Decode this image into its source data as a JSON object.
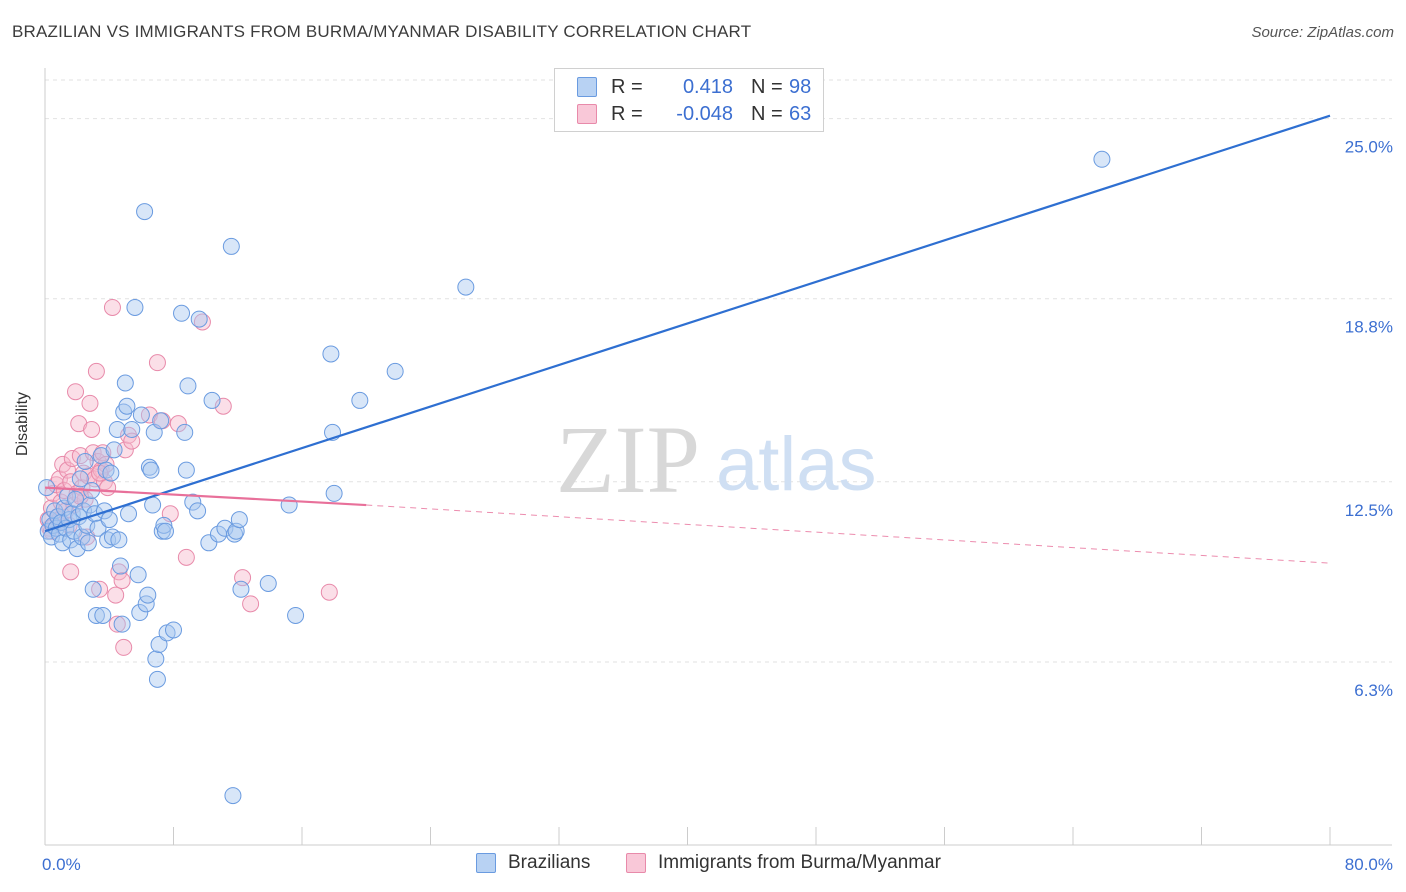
{
  "title": "BRAZILIAN VS IMMIGRANTS FROM BURMA/MYANMAR DISABILITY CORRELATION CHART",
  "source": "Source: ZipAtlas.com",
  "watermark": {
    "zip": "ZIP",
    "atlas": "atlas"
  },
  "legend": {
    "series1": {
      "r_label": "R =",
      "r_value": "0.418",
      "n_label": "N =",
      "n_value": "98"
    },
    "series2": {
      "r_label": "R =",
      "r_value": "-0.048",
      "n_label": "N =",
      "n_value": "63"
    }
  },
  "colors": {
    "blue_fill": "#a9c8f0",
    "blue_stroke": "#6a9be0",
    "blue_line": "#2e6fd1",
    "pink_fill": "#f6b8cc",
    "pink_stroke": "#e88aaa",
    "pink_line": "#e8709a",
    "axis_text": "#3c6fd1",
    "grid": "#e2e2e2"
  },
  "chart_data": {
    "type": "scatter",
    "title": "BRAZILIAN VS IMMIGRANTS FROM BURMA/MYANMAR DISABILITY CORRELATION CHART",
    "xlabel": "",
    "ylabel": "Disability",
    "xlim": [
      0,
      80
    ],
    "ylim": [
      0,
      26.5
    ],
    "x_tick_labels": [
      "0.0%",
      "80.0%"
    ],
    "y_ticks": [
      6.3,
      12.5,
      18.8,
      25.0
    ],
    "y_tick_labels": [
      "6.3%",
      "12.5%",
      "18.8%",
      "25.0%"
    ],
    "series": [
      {
        "name": "Brazilians",
        "color": "blue",
        "r": 0.418,
        "n": 98,
        "trend": {
          "x": [
            0.0,
            80.0
          ],
          "y": [
            10.8,
            25.1
          ],
          "style": "solid"
        },
        "points": [
          [
            0.2,
            10.8
          ],
          [
            0.3,
            11.2
          ],
          [
            0.4,
            10.6
          ],
          [
            0.5,
            11.0
          ],
          [
            0.6,
            11.5
          ],
          [
            0.7,
            10.9
          ],
          [
            0.8,
            11.3
          ],
          [
            0.9,
            10.7
          ],
          [
            1.0,
            11.1
          ],
          [
            1.1,
            10.4
          ],
          [
            1.2,
            11.6
          ],
          [
            1.3,
            10.9
          ],
          [
            1.4,
            12.0
          ],
          [
            1.5,
            11.2
          ],
          [
            1.6,
            10.5
          ],
          [
            1.7,
            11.4
          ],
          [
            1.8,
            10.8
          ],
          [
            1.9,
            11.9
          ],
          [
            2.0,
            10.2
          ],
          [
            2.1,
            11.3
          ],
          [
            2.2,
            12.6
          ],
          [
            2.3,
            10.6
          ],
          [
            2.4,
            11.5
          ],
          [
            2.5,
            13.2
          ],
          [
            2.6,
            11.0
          ],
          [
            2.7,
            10.4
          ],
          [
            2.8,
            11.7
          ],
          [
            2.9,
            12.2
          ],
          [
            3.0,
            8.8
          ],
          [
            3.1,
            11.4
          ],
          [
            3.2,
            7.9
          ],
          [
            3.3,
            10.9
          ],
          [
            3.5,
            13.4
          ],
          [
            3.6,
            7.9
          ],
          [
            3.7,
            11.5
          ],
          [
            3.8,
            12.9
          ],
          [
            3.9,
            10.5
          ],
          [
            4.0,
            11.2
          ],
          [
            4.1,
            12.8
          ],
          [
            4.2,
            10.6
          ],
          [
            4.3,
            13.6
          ],
          [
            4.5,
            14.3
          ],
          [
            4.6,
            10.5
          ],
          [
            4.7,
            9.6
          ],
          [
            4.8,
            7.6
          ],
          [
            4.9,
            14.9
          ],
          [
            5.0,
            15.9
          ],
          [
            5.1,
            15.1
          ],
          [
            5.2,
            11.4
          ],
          [
            5.4,
            14.3
          ],
          [
            5.6,
            18.5
          ],
          [
            5.8,
            9.3
          ],
          [
            5.9,
            8.0
          ],
          [
            6.0,
            14.8
          ],
          [
            6.2,
            21.8
          ],
          [
            6.3,
            8.3
          ],
          [
            6.4,
            8.6
          ],
          [
            6.5,
            13.0
          ],
          [
            6.6,
            12.9
          ],
          [
            6.7,
            11.7
          ],
          [
            6.8,
            14.2
          ],
          [
            6.9,
            6.4
          ],
          [
            7.0,
            5.7
          ],
          [
            7.1,
            6.9
          ],
          [
            7.2,
            14.6
          ],
          [
            7.3,
            10.8
          ],
          [
            7.4,
            11.0
          ],
          [
            7.5,
            10.8
          ],
          [
            7.6,
            7.3
          ],
          [
            8.0,
            7.4
          ],
          [
            8.5,
            18.3
          ],
          [
            8.7,
            14.2
          ],
          [
            8.8,
            12.9
          ],
          [
            8.9,
            15.8
          ],
          [
            9.2,
            11.8
          ],
          [
            9.5,
            11.5
          ],
          [
            9.6,
            18.1
          ],
          [
            10.2,
            10.4
          ],
          [
            10.4,
            15.3
          ],
          [
            10.8,
            10.7
          ],
          [
            11.2,
            10.9
          ],
          [
            11.6,
            20.6
          ],
          [
            11.8,
            10.7
          ],
          [
            11.9,
            10.8
          ],
          [
            12.1,
            11.2
          ],
          [
            11.7,
            1.7
          ],
          [
            12.2,
            8.8
          ],
          [
            13.9,
            9.0
          ],
          [
            15.2,
            11.7
          ],
          [
            15.6,
            7.9
          ],
          [
            17.8,
            16.9
          ],
          [
            17.9,
            14.2
          ],
          [
            18.0,
            12.1
          ],
          [
            19.6,
            15.3
          ],
          [
            21.8,
            16.3
          ],
          [
            26.2,
            19.2
          ],
          [
            65.8,
            23.6
          ],
          [
            0.1,
            12.3
          ]
        ]
      },
      {
        "name": "Immigrants from Burma/Myanmar",
        "color": "pink",
        "r": -0.048,
        "n": 63,
        "trend": {
          "x": [
            0.0,
            20.0
          ],
          "y": [
            12.3,
            11.7
          ],
          "style": "solid"
        },
        "trend_extension": {
          "x": [
            20.0,
            80.0
          ],
          "y": [
            11.7,
            9.7
          ],
          "style": "dashed"
        },
        "points": [
          [
            0.2,
            11.2
          ],
          [
            0.3,
            10.9
          ],
          [
            0.4,
            11.6
          ],
          [
            0.5,
            12.1
          ],
          [
            0.6,
            11.0
          ],
          [
            0.7,
            12.4
          ],
          [
            0.8,
            11.3
          ],
          [
            0.9,
            12.6
          ],
          [
            1.0,
            11.8
          ],
          [
            1.1,
            13.1
          ],
          [
            1.2,
            12.2
          ],
          [
            1.3,
            11.5
          ],
          [
            1.4,
            12.9
          ],
          [
            1.5,
            11.0
          ],
          [
            1.6,
            12.5
          ],
          [
            1.7,
            13.3
          ],
          [
            1.8,
            11.7
          ],
          [
            1.9,
            15.6
          ],
          [
            2.0,
            12.1
          ],
          [
            2.1,
            14.5
          ],
          [
            2.2,
            13.4
          ],
          [
            2.3,
            12.3
          ],
          [
            2.4,
            12.8
          ],
          [
            2.5,
            11.9
          ],
          [
            2.6,
            10.6
          ],
          [
            2.7,
            12.7
          ],
          [
            2.8,
            15.2
          ],
          [
            2.9,
            14.3
          ],
          [
            3.0,
            13.5
          ],
          [
            3.1,
            12.6
          ],
          [
            3.2,
            16.3
          ],
          [
            3.3,
            13.2
          ],
          [
            3.4,
            8.8
          ],
          [
            3.5,
            12.9
          ],
          [
            3.6,
            13.5
          ],
          [
            3.7,
            12.5
          ],
          [
            3.8,
            13.1
          ],
          [
            3.9,
            12.3
          ],
          [
            4.2,
            18.5
          ],
          [
            4.4,
            8.6
          ],
          [
            4.5,
            7.6
          ],
          [
            4.6,
            9.4
          ],
          [
            4.8,
            9.1
          ],
          [
            4.9,
            6.8
          ],
          [
            5.0,
            13.6
          ],
          [
            5.2,
            14.1
          ],
          [
            5.4,
            13.9
          ],
          [
            6.5,
            14.8
          ],
          [
            7.0,
            16.6
          ],
          [
            7.3,
            14.6
          ],
          [
            7.8,
            11.4
          ],
          [
            8.3,
            14.5
          ],
          [
            8.8,
            9.9
          ],
          [
            9.8,
            18.0
          ],
          [
            11.1,
            15.1
          ],
          [
            12.3,
            9.2
          ],
          [
            12.8,
            8.3
          ],
          [
            17.7,
            8.7
          ],
          [
            1.6,
            9.4
          ],
          [
            0.4,
            10.8
          ],
          [
            0.9,
            11.2
          ],
          [
            2.2,
            12.0
          ],
          [
            3.4,
            12.8
          ]
        ]
      }
    ]
  }
}
